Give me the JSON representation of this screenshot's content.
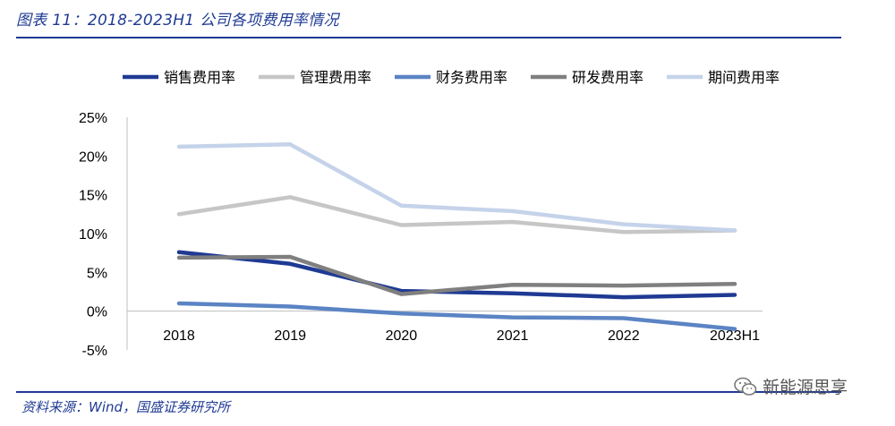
{
  "figure": {
    "title": "图表 11：2018-2023H1 公司各项费用率情况",
    "source": "资料来源：Wind，国盛证券研究所",
    "watermark": "新能源思享"
  },
  "chart_data": {
    "type": "line",
    "title": "",
    "xlabel": "",
    "ylabel": "",
    "categories": [
      "2018",
      "2019",
      "2020",
      "2021",
      "2022",
      "2023H1"
    ],
    "y_ticks": [
      "25%",
      "20%",
      "15%",
      "10%",
      "5%",
      "0%",
      "-5%"
    ],
    "y_tick_values": [
      25,
      20,
      15,
      10,
      5,
      0,
      -5
    ],
    "ylim": [
      -5,
      25
    ],
    "grid": false,
    "legend_position": "top",
    "series": [
      {
        "name": "销售费用率",
        "color": "#1f3a93",
        "values": [
          7.6,
          6.1,
          2.6,
          2.3,
          1.8,
          2.1
        ]
      },
      {
        "name": "管理费用率",
        "color": "#c6c6c6",
        "values": [
          12.5,
          14.7,
          11.1,
          11.5,
          10.2,
          10.4
        ]
      },
      {
        "name": "财务费用率",
        "color": "#5b84c4",
        "values": [
          1.0,
          0.6,
          -0.3,
          -0.8,
          -0.9,
          -2.3
        ]
      },
      {
        "name": "研发费用率",
        "color": "#7f7f7f",
        "values": [
          6.9,
          7.0,
          2.2,
          3.4,
          3.3,
          3.5
        ]
      },
      {
        "name": "期间费用率",
        "color": "#c5d3ea",
        "values": [
          21.2,
          21.5,
          13.6,
          12.9,
          11.2,
          10.4
        ]
      }
    ]
  }
}
